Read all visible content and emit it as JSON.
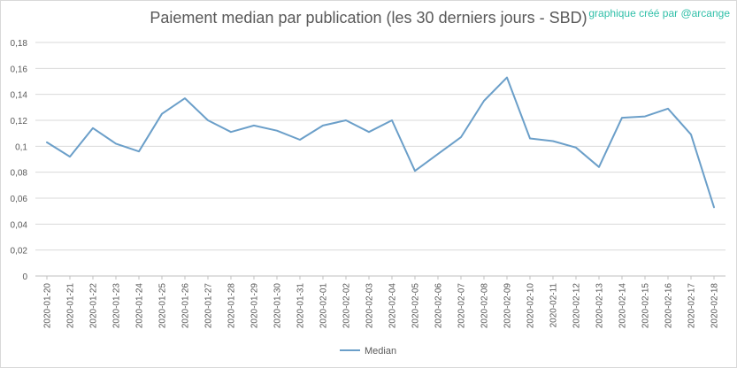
{
  "watermark": "graphique créé par @arcange",
  "chart_data": {
    "type": "line",
    "title": "Paiement median par publication (les 30 derniers jours - SBD)",
    "xlabel": "",
    "ylabel": "",
    "ylim": [
      0,
      0.18
    ],
    "yticks": [
      "0",
      "0,02",
      "0,04",
      "0,06",
      "0,08",
      "0,1",
      "0,12",
      "0,14",
      "0,16",
      "0,18"
    ],
    "grid": true,
    "legend_position": "bottom",
    "categories": [
      "2020-01-20",
      "2020-01-21",
      "2020-01-22",
      "2020-01-23",
      "2020-01-24",
      "2020-01-25",
      "2020-01-26",
      "2020-01-27",
      "2020-01-28",
      "2020-01-29",
      "2020-01-30",
      "2020-01-31",
      "2020-02-01",
      "2020-02-02",
      "2020-02-03",
      "2020-02-04",
      "2020-02-05",
      "2020-02-06",
      "2020-02-07",
      "2020-02-08",
      "2020-02-09",
      "2020-02-10",
      "2020-02-11",
      "2020-02-12",
      "2020-02-13",
      "2020-02-14",
      "2020-02-15",
      "2020-02-16",
      "2020-02-17",
      "2020-02-18"
    ],
    "series": [
      {
        "name": "Median",
        "color": "#6b9fc9",
        "values": [
          0.103,
          0.092,
          0.114,
          0.102,
          0.096,
          0.125,
          0.137,
          0.12,
          0.111,
          0.116,
          0.112,
          0.105,
          0.116,
          0.12,
          0.111,
          0.12,
          0.081,
          0.094,
          0.107,
          0.135,
          0.153,
          0.106,
          0.104,
          0.099,
          0.084,
          0.122,
          0.123,
          0.129,
          0.109,
          0.053
        ]
      }
    ]
  }
}
